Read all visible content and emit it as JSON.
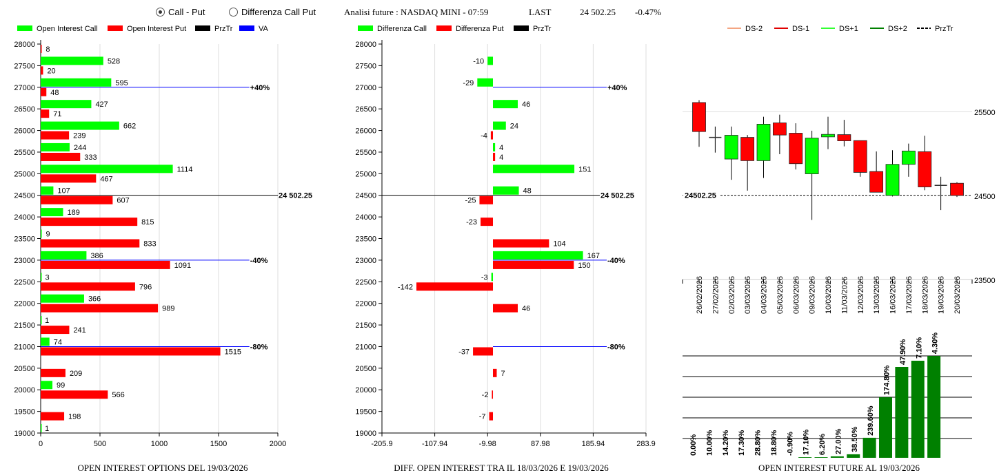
{
  "header": {
    "radio_options": [
      {
        "label": "Call - Put",
        "selected": true
      },
      {
        "label": "Differenza Call Put",
        "selected": false
      }
    ],
    "title": "Analisi future : NASDAQ MINI - 07:59",
    "last_label": "LAST",
    "last_value": "24 502.25",
    "change": "-0.47%"
  },
  "colors": {
    "call": "#00ff00",
    "put": "#ff0000",
    "prztr": "#000000",
    "va": "#0000ff",
    "ds_minus2": "#f4a582",
    "ds_minus1": "#e00000",
    "ds_plus1": "#33ff33",
    "ds_plus2": "#008000",
    "bull": "#00ff00",
    "bear": "#ff0000",
    "oi_bar": "#008000"
  },
  "chart_data": [
    {
      "type": "bar",
      "orientation": "horizontal",
      "title": "OPEN INTEREST OPTIONS DEL 19/03/2026",
      "legend": [
        {
          "name": "Open Interest Call",
          "color": "#00ff00"
        },
        {
          "name": "Open Interest Put",
          "color": "#ff0000"
        },
        {
          "name": "PrzTr",
          "color": "#000000"
        },
        {
          "name": "VA",
          "color": "#0000ff"
        }
      ],
      "legend_position": "top",
      "xlim": [
        0,
        2000
      ],
      "xticks": [
        "0",
        "500",
        "1000",
        "1500",
        "2000"
      ],
      "grid": "vertical",
      "categories": [
        28000,
        27500,
        27000,
        26500,
        26000,
        25500,
        25000,
        24500,
        24000,
        23500,
        23000,
        22500,
        22000,
        21500,
        21000,
        20500,
        20000,
        19500,
        19000
      ],
      "series": [
        {
          "name": "Open Interest Call",
          "values": [
            null,
            528,
            595,
            427,
            662,
            244,
            1114,
            107,
            189,
            9,
            386,
            3,
            366,
            1,
            74,
            null,
            99,
            null,
            1
          ]
        },
        {
          "name": "Open Interest Put",
          "values": [
            8,
            20,
            48,
            71,
            239,
            333,
            467,
            607,
            815,
            833,
            1091,
            796,
            989,
            241,
            1515,
            209,
            566,
            198,
            null
          ]
        }
      ],
      "reference_lines": [
        {
          "level": 27000,
          "label": "+40%",
          "color": "#0000ff",
          "extent": 1760
        },
        {
          "level": 23000,
          "label": "-40%",
          "color": "#0000ff",
          "extent": 1760
        },
        {
          "level": 21000,
          "label": "-80%",
          "color": "#0000ff",
          "extent": 1760
        },
        {
          "level": 24502.25,
          "label": "24 502.25",
          "color": "#000000",
          "extent": 2000
        }
      ]
    },
    {
      "type": "bar",
      "orientation": "horizontal",
      "title": "DIFF. OPEN INTEREST TRA IL 18/03/2026 E 19/03/2026",
      "legend": [
        {
          "name": "Differenza Call",
          "color": "#00ff00"
        },
        {
          "name": "Differenza Put",
          "color": "#ff0000"
        },
        {
          "name": "PrzTr",
          "color": "#000000"
        }
      ],
      "legend_position": "top",
      "xlim": [
        -205.9,
        283.9
      ],
      "xticks": [
        "-205.9",
        "-107.94",
        "-9.98",
        "87.98",
        "185.94",
        "283.9"
      ],
      "grid": "vertical",
      "categories": [
        28000,
        27500,
        27000,
        26500,
        26000,
        25500,
        25000,
        24500,
        24000,
        23500,
        23000,
        22500,
        22000,
        21500,
        21000,
        20500,
        20000,
        19500,
        19000
      ],
      "series": [
        {
          "name": "Differenza Call",
          "values": [
            null,
            -10,
            -29,
            46,
            24,
            4,
            151,
            48,
            null,
            null,
            167,
            -3,
            null,
            null,
            null,
            null,
            null,
            null,
            null
          ]
        },
        {
          "name": "Differenza Put",
          "values": [
            null,
            null,
            null,
            null,
            -4,
            4,
            null,
            -25,
            -23,
            104,
            150,
            -142,
            46,
            null,
            -37,
            7,
            -2,
            -7,
            null
          ]
        }
      ],
      "reference_lines": [
        {
          "level": 27000,
          "label": "+40%",
          "color": "#0000ff",
          "extent": 210
        },
        {
          "level": 23000,
          "label": "-40%",
          "color": "#0000ff",
          "extent": 210
        },
        {
          "level": 21000,
          "label": "-80%",
          "color": "#0000ff",
          "extent": 210
        },
        {
          "level": 24502.25,
          "label": "24 502.25",
          "color": "#000000",
          "extent": 198
        }
      ]
    },
    {
      "type": "candlestick",
      "legend": [
        {
          "name": "DS-2",
          "color": "#f4a582"
        },
        {
          "name": "DS-1",
          "color": "#e00000"
        },
        {
          "name": "DS+1",
          "color": "#33ff33"
        },
        {
          "name": "DS+2",
          "color": "#008000"
        },
        {
          "name": "PrzTr",
          "color": "#000000",
          "dashed": true
        }
      ],
      "legend_position": "top",
      "ylim": [
        23500,
        25500
      ],
      "yticks": [
        "25500",
        "24500",
        "23500"
      ],
      "last_price_label": "24502.25",
      "last_price": 24502.25,
      "dates": [
        "26/02/2026",
        "27/02/2026",
        "02/03/2026",
        "03/03/2026",
        "04/03/2026",
        "05/03/2026",
        "06/03/2026",
        "09/03/2026",
        "10/03/2026",
        "11/03/2026",
        "12/03/2026",
        "13/03/2026",
        "16/03/2026",
        "17/03/2026",
        "18/03/2026",
        "19/03/2026",
        "20/03/2026"
      ],
      "ohlc": [
        [
          25607,
          25635,
          25080,
          25261
        ],
        [
          25192,
          25321,
          25011,
          25192
        ],
        [
          24934,
          25321,
          24687,
          25217
        ],
        [
          25192,
          25220,
          24558,
          24915
        ],
        [
          24915,
          25437,
          24709,
          25349
        ],
        [
          25365,
          25462,
          24992,
          25220
        ],
        [
          25242,
          25360,
          24810,
          24879
        ],
        [
          24758,
          25272,
          24209,
          25184
        ],
        [
          25198,
          25437,
          25052,
          25228
        ],
        [
          25225,
          25401,
          25085,
          25151
        ],
        [
          25154,
          25154,
          24723,
          24775
        ],
        [
          24786,
          25025,
          24539,
          24539
        ],
        [
          24500,
          25039,
          24489,
          24871
        ],
        [
          24871,
          25118,
          24723,
          25030
        ],
        [
          25022,
          25212,
          24563,
          24602
        ],
        [
          24621,
          24723,
          24327,
          24621
        ],
        [
          24646,
          24659,
          24483,
          24500
        ]
      ]
    },
    {
      "type": "bar",
      "title": "OPEN INTEREST FUTURE AL 19/03/2026",
      "grid": "horizontal",
      "labels": [
        "0.00%",
        "10.00%",
        "14.20%",
        "17.30%",
        "28.80%",
        "18.80%",
        "-0.90%",
        "17.10%",
        "6.20%",
        "27.00%",
        "38.50%",
        "239.60%",
        "174.80%",
        "47.90%",
        "7.10%",
        "4.30%"
      ],
      "values": [
        0,
        0,
        0,
        0,
        0,
        0,
        0,
        0.03,
        0.03,
        0.07,
        0.17,
        0.97,
        2.93,
        4.4,
        4.7,
        4.93
      ]
    }
  ]
}
